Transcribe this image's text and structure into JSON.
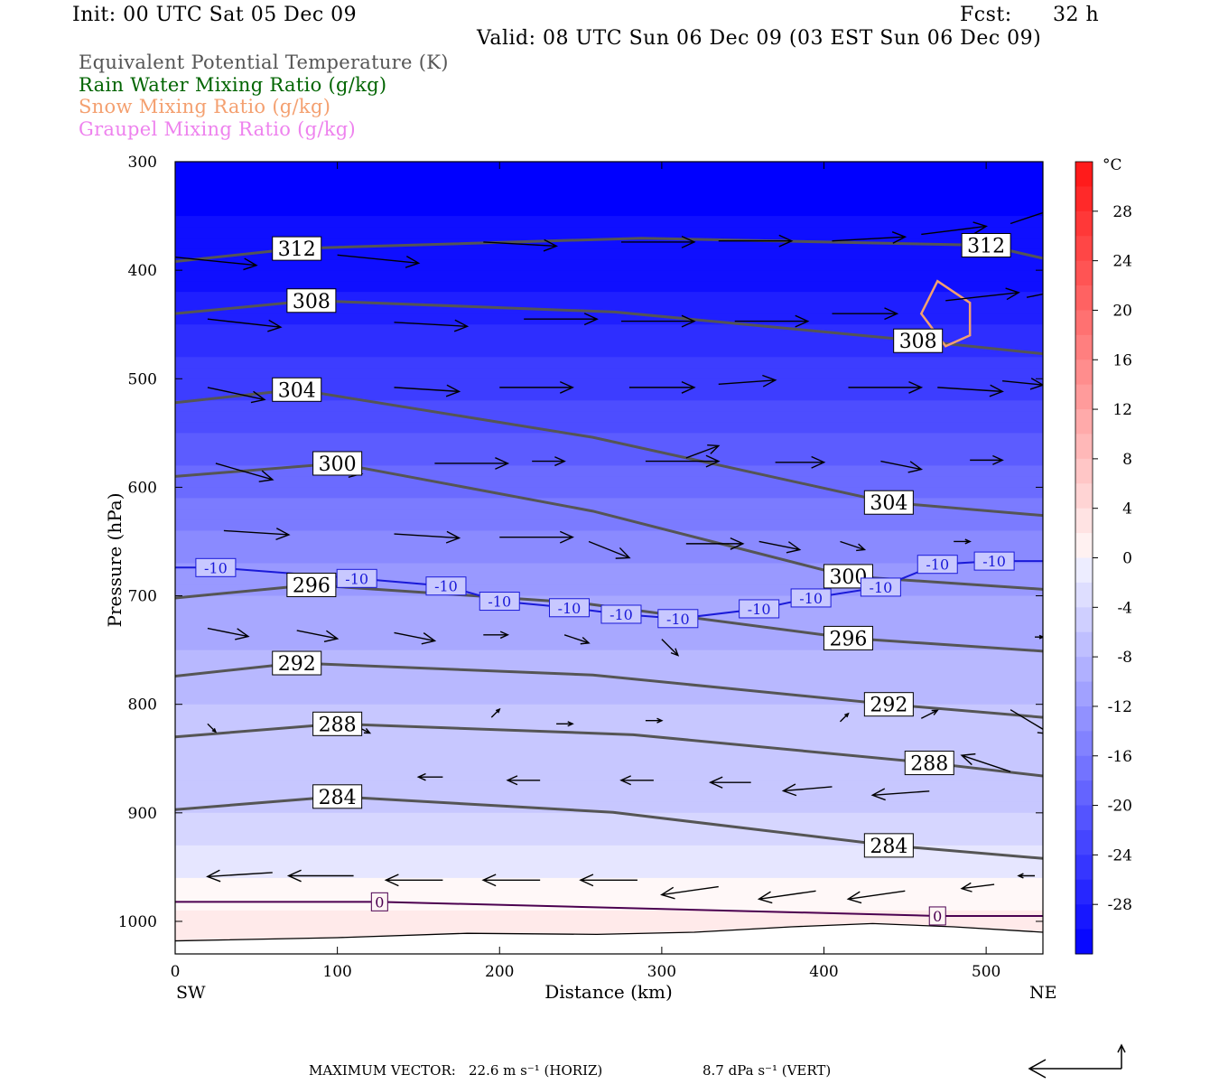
{
  "header": {
    "init": "Init: 00 UTC Sat 05 Dec 09",
    "fcst_label": "Fcst:",
    "fcst_value": "32 h",
    "valid": "Valid: 08 UTC Sun 06 Dec 09 (03 EST Sun 06 Dec 09)"
  },
  "legend": {
    "theta_e": "Equivalent Potential Temperature (K)",
    "rain": "Rain Water Mixing Ratio (g/kg)",
    "snow": "Snow Mixing Ratio (g/kg)",
    "graupel": "Graupel Mixing Ratio (g/kg)"
  },
  "colors": {
    "theta_e": "#555555",
    "rain": "#006400",
    "snow": "#f4a070",
    "graupel": "#ee82ee",
    "isotherm": "#1a1ad8",
    "zero_isotherm": "#4b0050"
  },
  "footer": {
    "max_vector_label": "MAXIMUM VECTOR:",
    "horiz": "22.6 m s⁻¹ (HORIZ)",
    "vert": "8.7 dPa s⁻¹ (VERT)"
  },
  "chart_data": {
    "type": "heatmap",
    "xlabel": "Distance (km)",
    "ylabel": "Pressure (hPa)",
    "xlim": [
      0,
      535
    ],
    "ylim": [
      1030,
      300
    ],
    "x_ticks": [
      0,
      100,
      200,
      300,
      400,
      500
    ],
    "y_ticks": [
      300,
      400,
      500,
      600,
      700,
      800,
      900,
      1000
    ],
    "x_end_labels": {
      "left": "SW",
      "right": "NE"
    },
    "colorbar": {
      "unit": "°C",
      "tick_labels": [
        "28",
        "24",
        "20",
        "16",
        "12",
        "8",
        "4",
        "0",
        "-4",
        "-8",
        "-12",
        "-16",
        "-20",
        "-24",
        "-28"
      ],
      "range": [
        -32,
        32
      ],
      "step": 2
    },
    "temperature_field": [
      {
        "p": 300,
        "t": -32
      },
      {
        "p": 400,
        "t": -30
      },
      {
        "p": 450,
        "t": -27
      },
      {
        "p": 500,
        "t": -24
      },
      {
        "p": 550,
        "t": -21
      },
      {
        "p": 600,
        "t": -18
      },
      {
        "p": 650,
        "t": -14
      },
      {
        "p": 700,
        "t": -11
      },
      {
        "p": 750,
        "t": -9
      },
      {
        "p": 800,
        "t": -7
      },
      {
        "p": 850,
        "t": -6
      },
      {
        "p": 900,
        "t": -5
      },
      {
        "p": 950,
        "t": -2
      },
      {
        "p": 1000,
        "t": 2
      },
      {
        "p": 1030,
        "t": 3
      }
    ],
    "theta_e_contours": [
      {
        "value": "312",
        "labels": [
          [
            75,
            380
          ],
          [
            500,
            377
          ]
        ]
      },
      {
        "value": "308",
        "labels": [
          [
            84,
            428
          ],
          [
            458,
            465
          ]
        ]
      },
      {
        "value": "304",
        "labels": [
          [
            75,
            510
          ],
          [
            440,
            614
          ]
        ]
      },
      {
        "value": "300",
        "labels": [
          [
            100,
            578
          ],
          [
            415,
            682
          ]
        ]
      },
      {
        "value": "296",
        "labels": [
          [
            84,
            690
          ],
          [
            415,
            739
          ]
        ]
      },
      {
        "value": "292",
        "labels": [
          [
            75,
            762
          ],
          [
            440,
            800
          ]
        ]
      },
      {
        "value": "288",
        "labels": [
          [
            100,
            818
          ],
          [
            465,
            854
          ]
        ]
      },
      {
        "value": "284",
        "labels": [
          [
            100,
            885
          ],
          [
            440,
            930
          ]
        ]
      }
    ],
    "isotherm_labels": [
      {
        "value": "-10",
        "points": [
          [
            25,
            674
          ],
          [
            112,
            684
          ],
          [
            167,
            691
          ],
          [
            200,
            705
          ],
          [
            243,
            711
          ],
          [
            275,
            717
          ],
          [
            310,
            721
          ],
          [
            360,
            712
          ],
          [
            392,
            702
          ],
          [
            435,
            692
          ],
          [
            470,
            671
          ],
          [
            505,
            668
          ]
        ]
      },
      {
        "value": "0",
        "points": [
          [
            126,
            982
          ],
          [
            470,
            995
          ]
        ]
      }
    ],
    "wind_vectors": [
      [
        0,
        388,
        1.0,
        0.1
      ],
      [
        100,
        386,
        1.0,
        0.1
      ],
      [
        190,
        374,
        0.9,
        0.05
      ],
      [
        275,
        374,
        0.9,
        0.0
      ],
      [
        335,
        373,
        0.9,
        0.0
      ],
      [
        405,
        373,
        0.9,
        -0.05
      ],
      [
        460,
        367,
        0.8,
        -0.1
      ],
      [
        515,
        357,
        0.6,
        -0.2
      ],
      [
        20,
        445,
        0.9,
        0.1
      ],
      [
        135,
        448,
        0.9,
        0.05
      ],
      [
        215,
        445,
        0.9,
        0.0
      ],
      [
        275,
        447,
        0.9,
        0.0
      ],
      [
        345,
        447,
        0.9,
        0.0
      ],
      [
        405,
        440,
        0.8,
        0.0
      ],
      [
        475,
        428,
        0.9,
        -0.1
      ],
      [
        525,
        425,
        0.5,
        -0.1
      ],
      [
        20,
        508,
        0.7,
        0.15
      ],
      [
        135,
        508,
        0.8,
        0.05
      ],
      [
        200,
        508,
        0.9,
        0.0
      ],
      [
        280,
        508,
        0.8,
        0.0
      ],
      [
        335,
        505,
        0.7,
        -0.05
      ],
      [
        415,
        508,
        0.9,
        0.0
      ],
      [
        470,
        508,
        0.8,
        0.05
      ],
      [
        510,
        502,
        0.5,
        0.05
      ],
      [
        25,
        578,
        0.7,
        0.2
      ],
      [
        85,
        580,
        0.6,
        0.1
      ],
      [
        160,
        578,
        0.9,
        0.0
      ],
      [
        220,
        576,
        0.4,
        0.0
      ],
      [
        290,
        576,
        0.9,
        0.0
      ],
      [
        315,
        573,
        0.4,
        -0.15
      ],
      [
        370,
        577,
        0.6,
        0.0
      ],
      [
        435,
        576,
        0.5,
        0.1
      ],
      [
        490,
        575,
        0.4,
        0.0
      ],
      [
        30,
        640,
        0.8,
        0.05
      ],
      [
        135,
        643,
        0.8,
        0.05
      ],
      [
        200,
        646,
        0.9,
        0.0
      ],
      [
        255,
        650,
        0.5,
        0.2
      ],
      [
        315,
        652,
        0.7,
        0.0
      ],
      [
        360,
        650,
        0.5,
        0.1
      ],
      [
        410,
        650,
        0.3,
        0.1
      ],
      [
        480,
        650,
        0.2,
        0.0
      ],
      [
        20,
        730,
        0.5,
        0.1
      ],
      [
        75,
        732,
        0.5,
        0.1
      ],
      [
        135,
        734,
        0.5,
        0.1
      ],
      [
        190,
        736,
        0.3,
        0.0
      ],
      [
        240,
        736,
        0.3,
        0.1
      ],
      [
        300,
        740,
        0.2,
        0.2
      ],
      [
        530,
        738,
        0.1,
        0.0
      ],
      [
        20,
        818,
        0.1,
        0.1
      ],
      [
        110,
        819,
        0.2,
        0.1
      ],
      [
        195,
        812,
        0.1,
        -0.1
      ],
      [
        235,
        818,
        0.2,
        0.0
      ],
      [
        290,
        815,
        0.2,
        0.0
      ],
      [
        410,
        816,
        0.1,
        -0.1
      ],
      [
        460,
        813,
        0.2,
        -0.1
      ],
      [
        515,
        805,
        0.5,
        0.3
      ],
      [
        100,
        876,
        -0.2,
        0.05
      ],
      [
        165,
        867,
        -0.3,
        0.0
      ],
      [
        225,
        870,
        -0.4,
        0.0
      ],
      [
        295,
        870,
        -0.4,
        0.0
      ],
      [
        355,
        872,
        -0.5,
        0.0
      ],
      [
        405,
        876,
        -0.6,
        0.05
      ],
      [
        465,
        880,
        -0.7,
        0.05
      ],
      [
        515,
        862,
        -0.6,
        -0.2
      ],
      [
        60,
        955,
        -0.8,
        0.05
      ],
      [
        110,
        958,
        -0.8,
        0.0
      ],
      [
        165,
        962,
        -0.7,
        0.0
      ],
      [
        225,
        962,
        -0.7,
        0.0
      ],
      [
        285,
        962,
        -0.7,
        0.0
      ],
      [
        335,
        968,
        -0.7,
        0.1
      ],
      [
        395,
        972,
        -0.7,
        0.1
      ],
      [
        450,
        972,
        -0.7,
        0.1
      ],
      [
        505,
        966,
        -0.4,
        0.05
      ],
      [
        530,
        958,
        -0.2,
        0.0
      ]
    ]
  }
}
